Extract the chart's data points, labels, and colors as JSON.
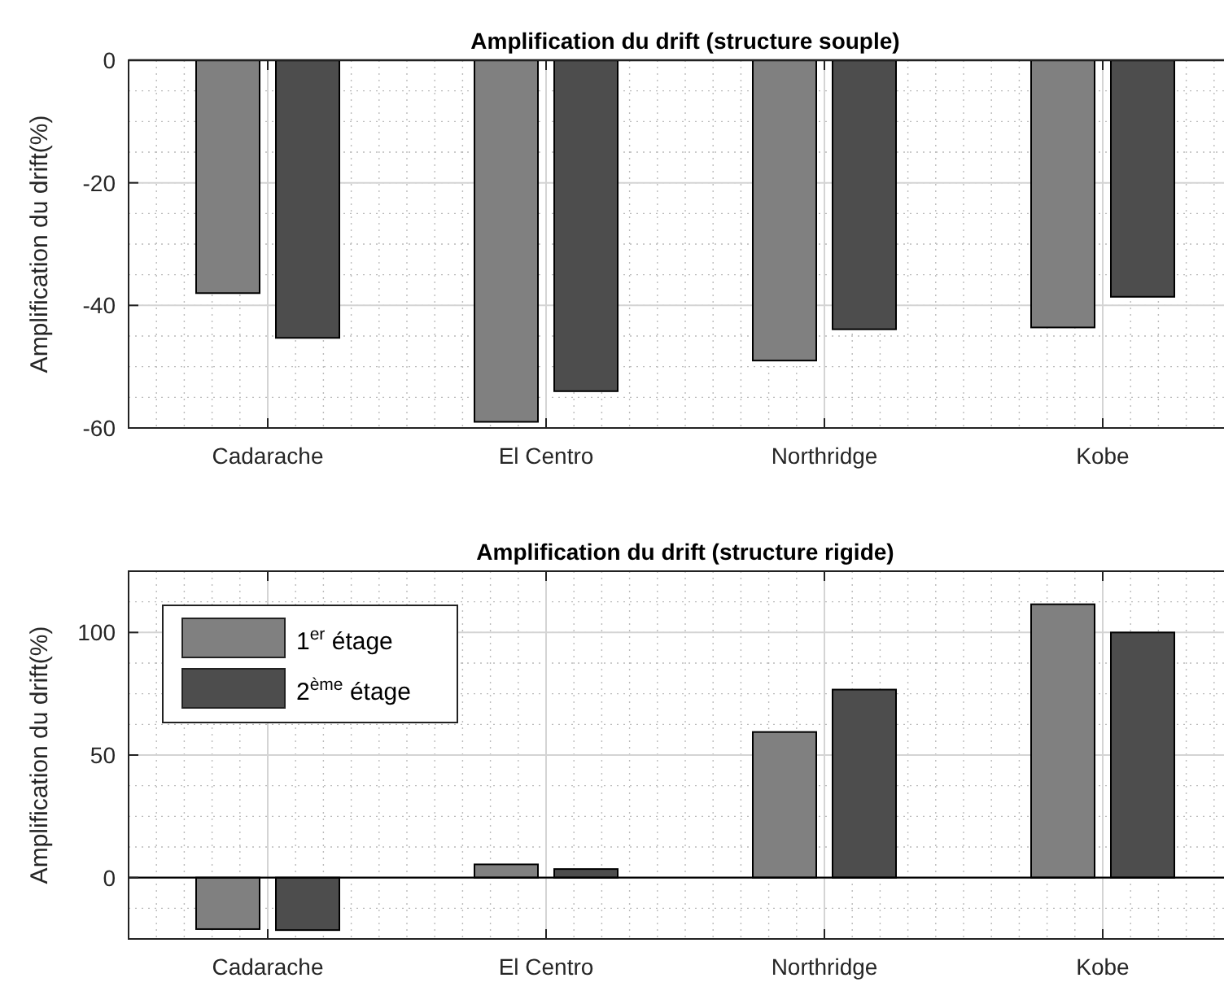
{
  "chart_data": [
    {
      "type": "bar",
      "title": "Amplification du drift (structure souple)",
      "ylabel": "Amplification du drift(%)",
      "categories": [
        "Cadarache",
        "El Centro",
        "Northridge",
        "Kobe"
      ],
      "series": [
        {
          "color": "#808080",
          "values": [
            -38,
            -59,
            -49,
            -43.6
          ]
        },
        {
          "color": "#4d4d4d",
          "values": [
            -45.3,
            -54,
            -43.9,
            -38.6
          ]
        }
      ],
      "ylim": [
        -60,
        0
      ],
      "yticks": [
        -60,
        -40,
        -20,
        0
      ],
      "grid": true,
      "legend": false
    },
    {
      "type": "bar",
      "title": "Amplification du drift (structure rigide)",
      "ylabel": "Amplification du drift(%)",
      "categories": [
        "Cadarache",
        "El Centro",
        "Northridge",
        "Kobe"
      ],
      "series": [
        {
          "name": "1$^{er}$ étage",
          "color": "#808080",
          "values": [
            -21,
            5.4,
            59.4,
            111.5
          ]
        },
        {
          "name": "2$^{ème}$ étage",
          "color": "#4d4d4d",
          "values": [
            -21.4,
            3.5,
            76.7,
            100
          ]
        }
      ],
      "ylim": [
        -25,
        125
      ],
      "yticks": [
        0,
        50,
        100
      ],
      "grid": true,
      "legend": "top left"
    }
  ]
}
